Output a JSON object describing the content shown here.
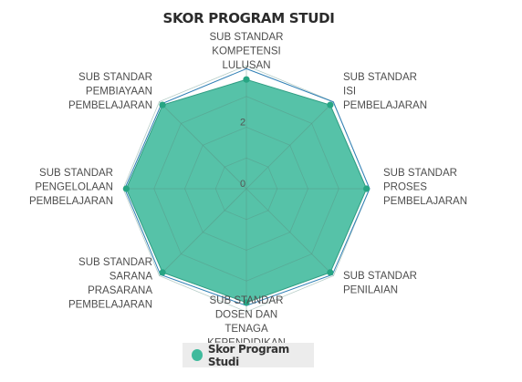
{
  "chart_data": {
    "type": "radar",
    "title": "SKOR PROGRAM STUDI",
    "categories": [
      [
        "SUB STANDAR",
        "KOMPETENSI",
        "LULUSAN"
      ],
      [
        "SUB STANDAR",
        "ISI",
        "PEMBELAJARAN"
      ],
      [
        "SUB STANDAR",
        "PROSES",
        "PEMBELAJARAN"
      ],
      [
        "SUB STANDAR",
        "PENILAIAN"
      ],
      [
        "SUB STANDAR",
        "DOSEN DAN",
        "TENAGA",
        "KEPENDIDIKAN"
      ],
      [
        "SUB STANDAR",
        "SARANA",
        "PRASARANA",
        "PEMBELAJARAN"
      ],
      [
        "SUB STANDAR",
        "PENGELOLAAN",
        "PEMBELAJARAN"
      ],
      [
        "SUB STANDAR",
        "PEMBIAYAAN",
        "PEMBELAJARAN"
      ]
    ],
    "radial_ticks": [
      "0",
      "2"
    ],
    "rmin": 0,
    "rmax": 4,
    "series": [
      {
        "name": "Skor Program Studi",
        "values": [
          3.55,
          3.85,
          3.9,
          3.85,
          3.7,
          3.85,
          3.9,
          3.85
        ],
        "color": "#3fba9c"
      }
    ],
    "reference_outline": {
      "values": [
        3.9,
        3.99,
        4,
        3.95,
        3.8,
        3.95,
        3.95,
        3.9
      ],
      "color": "#2f7fb5"
    },
    "grid": true,
    "legend_position": "bottom"
  }
}
